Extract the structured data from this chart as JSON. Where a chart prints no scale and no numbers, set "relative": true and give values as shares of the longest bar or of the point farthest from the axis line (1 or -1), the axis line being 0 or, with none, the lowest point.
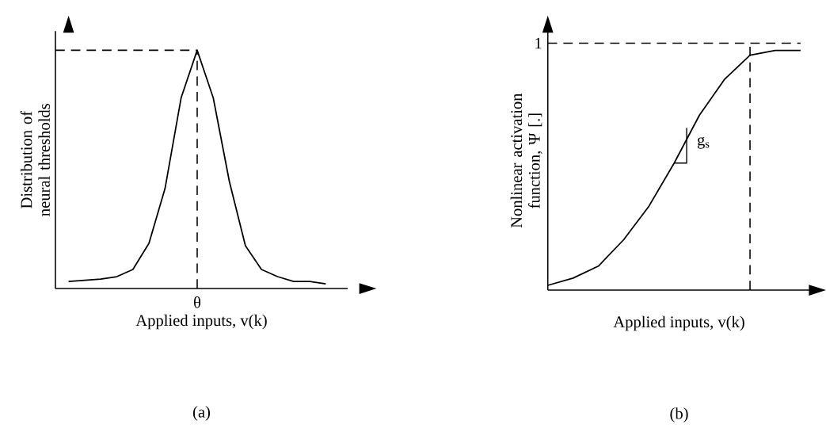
{
  "chart_data": [
    {
      "type": "line",
      "title": "(a)",
      "xlabel": "Applied inputs, v(k)",
      "ylabel": "Distribution of neural thresholds",
      "relative": true,
      "color": "#000000",
      "line_style": "solid",
      "marker": "none",
      "categories": [
        null,
        null,
        null,
        null,
        null,
        null,
        null,
        null,
        null,
        null,
        null,
        null,
        null,
        null,
        null,
        null,
        null
      ],
      "values": [
        0.03,
        0.035,
        0.04,
        0.05,
        0.08,
        0.19,
        0.42,
        0.8,
        1,
        0.8,
        0.45,
        0.18,
        0.08,
        0.05,
        0.03,
        0.03,
        0.02
      ],
      "annotations": [
        "θ"
      ],
      "ref_lines": [
        {
          "axis": "y",
          "value": 1,
          "line_style": "dashed"
        }
      ]
    },
    {
      "type": "line",
      "title": "(b)",
      "xlabel": "Applied inputs, v(k)",
      "ylabel": "Nonlinear activation function, Ψ [.]",
      "relative": true,
      "color": "#000000",
      "line_style": "solid",
      "marker": "none",
      "categories": [
        null,
        null,
        null,
        null,
        null,
        null,
        null,
        null,
        null,
        null,
        null
      ],
      "values": [
        0.02,
        0.05,
        0.1,
        0.21,
        0.35,
        0.53,
        0.73,
        0.88,
        0.98,
        1,
        1
      ],
      "annotations": [
        "g$_{s}$"
      ],
      "ref_lines": [
        {
          "axis": "y",
          "value": 1.03,
          "label": "1",
          "line_style": "dashed"
        }
      ]
    }
  ]
}
